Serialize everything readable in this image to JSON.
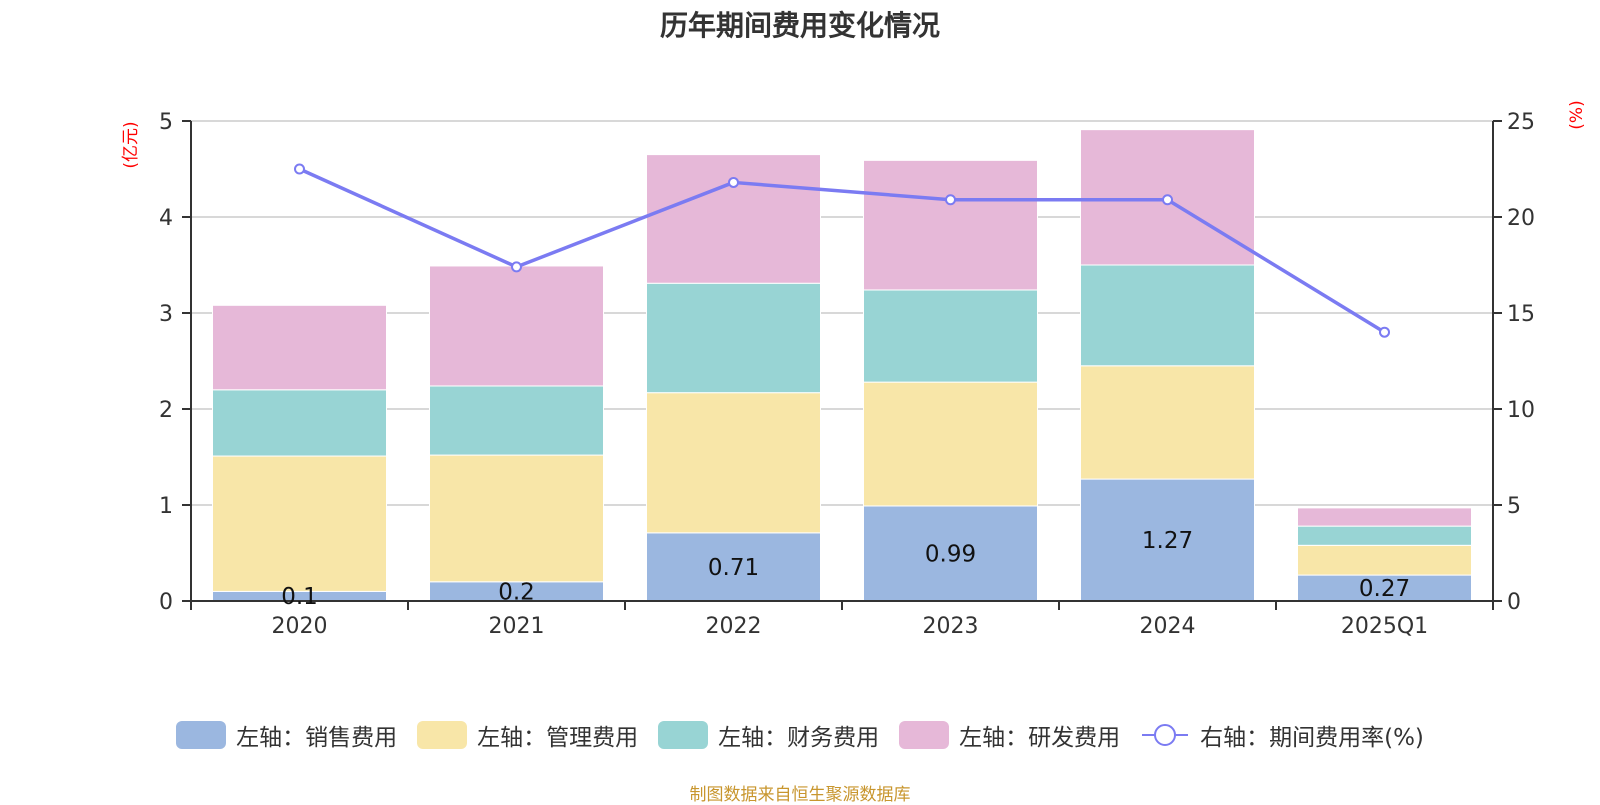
{
  "title": "历年期间费用变化情况",
  "source": "制图数据来自恒生聚源数据库",
  "colors": {
    "sales": "#9bb7e0",
    "admin": "#f8e6a8",
    "finance": "#98d4d4",
    "rd": "#e6b8d8",
    "rate": "#7b7bf2",
    "grid": "#cccccc",
    "axis": "#333333",
    "unit": "#ff0000",
    "source": "#c8962e"
  },
  "chart_data": {
    "type": "bar",
    "title": "历年期间费用变化情况",
    "categories": [
      "2020",
      "2021",
      "2022",
      "2023",
      "2024",
      "2025Q1"
    ],
    "stacked": true,
    "y_left": {
      "label": "(亿元)",
      "range": [
        0,
        5
      ],
      "ticks": [
        0,
        1,
        2,
        3,
        4,
        5
      ]
    },
    "y_right": {
      "label": "(%)",
      "range": [
        0,
        25
      ],
      "ticks": [
        0,
        5,
        10,
        15,
        20,
        25
      ]
    },
    "grid": true,
    "legend_position": "bottom",
    "series": [
      {
        "name": "左轴：销售费用",
        "axis": "left",
        "type": "bar",
        "color_key": "sales",
        "values": [
          0.1,
          0.2,
          0.71,
          0.99,
          1.27,
          0.27
        ],
        "show_labels": true
      },
      {
        "name": "左轴：管理费用",
        "axis": "left",
        "type": "bar",
        "color_key": "admin",
        "values": [
          1.41,
          1.32,
          1.46,
          1.29,
          1.18,
          0.31
        ]
      },
      {
        "name": "左轴：财务费用",
        "axis": "left",
        "type": "bar",
        "color_key": "finance",
        "values": [
          0.69,
          0.72,
          1.14,
          0.96,
          1.05,
          0.2
        ]
      },
      {
        "name": "左轴：研发费用",
        "axis": "left",
        "type": "bar",
        "color_key": "rd",
        "values": [
          0.88,
          1.25,
          1.34,
          1.35,
          1.41,
          0.19
        ]
      },
      {
        "name": "右轴：期间费用率(%)",
        "axis": "right",
        "type": "line",
        "color_key": "rate",
        "values": [
          22.5,
          17.4,
          21.8,
          20.9,
          20.9,
          14.0
        ]
      }
    ]
  }
}
